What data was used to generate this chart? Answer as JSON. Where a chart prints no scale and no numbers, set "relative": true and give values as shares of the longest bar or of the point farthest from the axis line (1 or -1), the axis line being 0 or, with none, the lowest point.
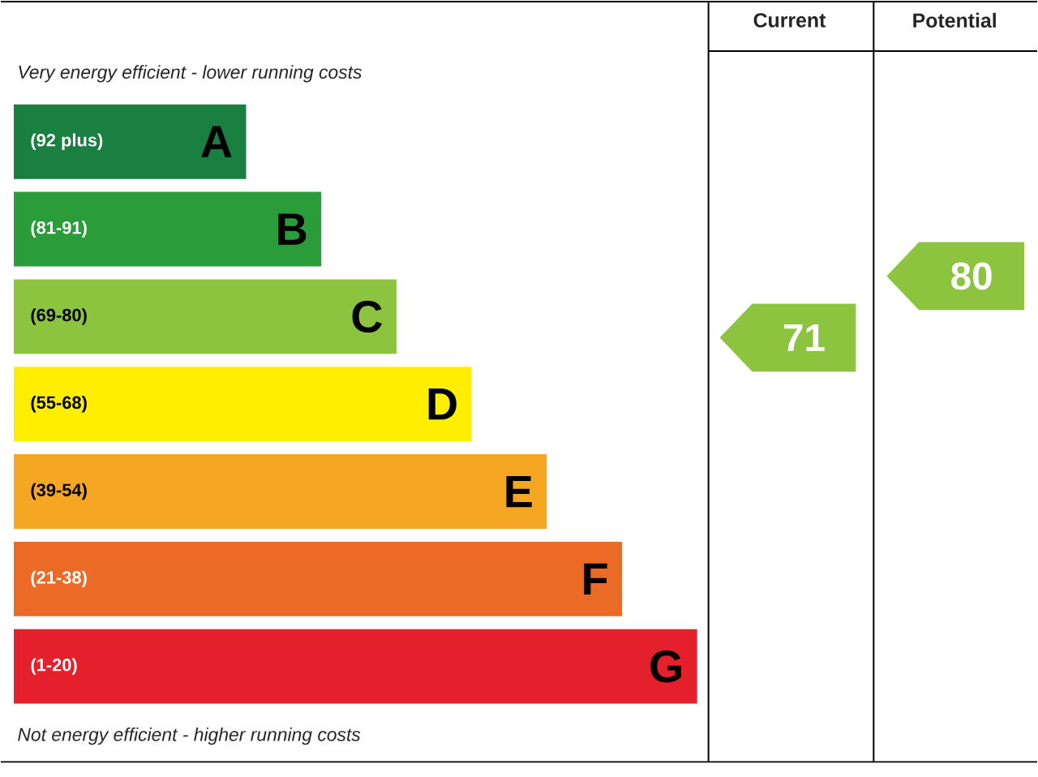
{
  "chart_data": {
    "type": "bar",
    "orientation": "horizontal",
    "relative": true,
    "categories": [
      "A",
      "B",
      "C",
      "D",
      "E",
      "F",
      "G"
    ],
    "values": [
      0.34,
      0.45,
      0.56,
      0.67,
      0.78,
      0.89,
      1.0
    ],
    "colors": [
      "#1a8041",
      "#2a9d3a",
      "#8cc43f",
      "#ffee00",
      "#f5a623",
      "#eb6a25",
      "#e3202b"
    ],
    "annotations": [
      "Very energy efficient - lower running costs",
      "Not energy efficient - higher running costs",
      "Current",
      "Potential",
      "(92 plus)",
      "(81-91)",
      "(69-80)",
      "(55-68)",
      "(39-54)",
      "(21-38)",
      "(1-20)",
      "71",
      "80"
    ]
  }
}
